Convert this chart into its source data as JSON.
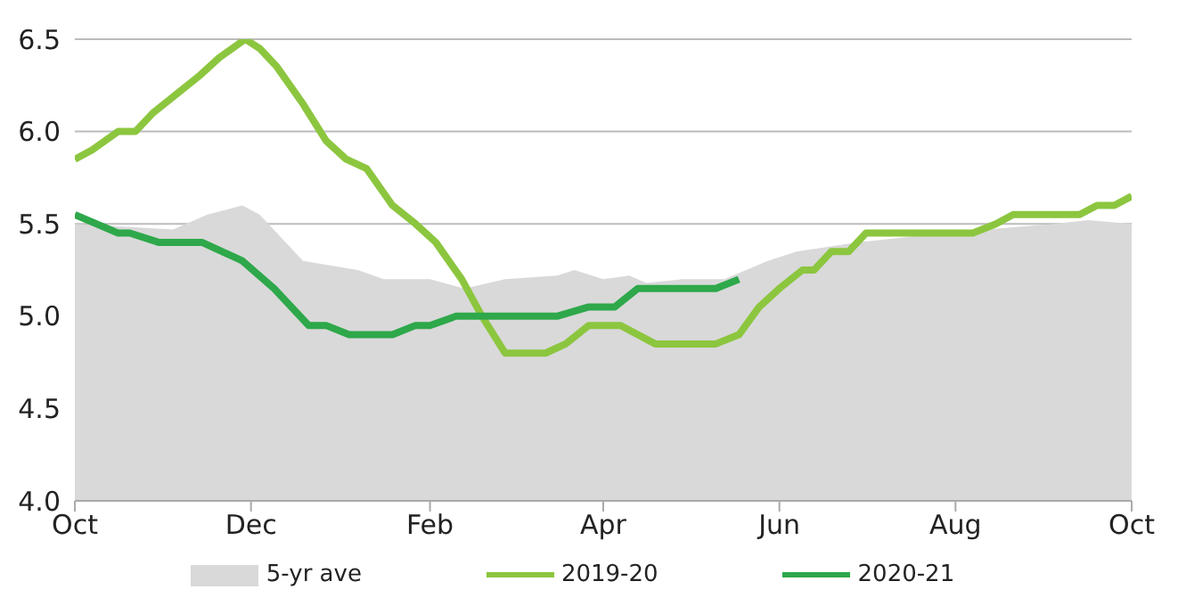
{
  "chart_data": {
    "type": "line",
    "xlim": [
      "2019-10-01",
      "2020-10-01"
    ],
    "xticks": [
      {
        "value": "2019-10-01",
        "label": "Oct"
      },
      {
        "value": "2019-12-01",
        "label": "Dec"
      },
      {
        "value": "2020-02-01",
        "label": "Feb"
      },
      {
        "value": "2020-04-01",
        "label": "Apr"
      },
      {
        "value": "2020-06-01",
        "label": "Jun"
      },
      {
        "value": "2020-08-01",
        "label": "Aug"
      },
      {
        "value": "2020-10-01",
        "label": "Oct"
      }
    ],
    "ylim": [
      4.0,
      6.5
    ],
    "yticks": [
      {
        "value": 4.0,
        "label": "4.0"
      },
      {
        "value": 4.5,
        "label": "4.5"
      },
      {
        "value": 5.0,
        "label": "5.0"
      },
      {
        "value": 5.5,
        "label": "5.5"
      },
      {
        "value": 6.0,
        "label": "6.0"
      },
      {
        "value": 6.5,
        "label": "6.5"
      }
    ],
    "grid": "y",
    "legend": "bottom",
    "series": [
      {
        "name": "5-yr ave",
        "type": "area",
        "color": "#d9d9d9",
        "x": [
          "2019-10-01",
          "2019-11-04",
          "2019-11-16",
          "2019-11-28",
          "2019-12-04",
          "2019-12-19",
          "2020-01-07",
          "2020-01-16",
          "2020-02-01",
          "2020-02-13",
          "2020-02-27",
          "2020-03-16",
          "2020-03-22",
          "2020-04-01",
          "2020-04-10",
          "2020-04-16",
          "2020-04-28",
          "2020-05-13",
          "2020-05-28",
          "2020-06-07",
          "2020-06-28",
          "2020-07-28",
          "2020-09-04",
          "2020-09-16",
          "2020-10-01"
        ],
        "values": [
          5.5,
          5.47,
          5.55,
          5.6,
          5.55,
          5.3,
          5.25,
          5.2,
          5.2,
          5.15,
          5.2,
          5.22,
          5.25,
          5.2,
          5.22,
          5.18,
          5.2,
          5.2,
          5.3,
          5.35,
          5.4,
          5.45,
          5.5,
          5.52,
          5.5
        ]
      },
      {
        "name": "2019-20",
        "color": "#8cc63f",
        "x": [
          "2019-10-01",
          "2019-10-07",
          "2019-10-16",
          "2019-10-22",
          "2019-10-28",
          "2019-11-05",
          "2019-11-13",
          "2019-11-20",
          "2019-11-29",
          "2019-12-04",
          "2019-12-10",
          "2019-12-19",
          "2019-12-27",
          "2020-01-03",
          "2020-01-10",
          "2020-01-19",
          "2020-01-27",
          "2020-02-03",
          "2020-02-12",
          "2020-02-19",
          "2020-02-27",
          "2020-03-12",
          "2020-03-19",
          "2020-03-27",
          "2020-04-07",
          "2020-04-19",
          "2020-05-10",
          "2020-05-18",
          "2020-05-25",
          "2020-06-01",
          "2020-06-09",
          "2020-06-13",
          "2020-06-19",
          "2020-06-25",
          "2020-07-01",
          "2020-08-07",
          "2020-08-15",
          "2020-08-21",
          "2020-09-13",
          "2020-09-19",
          "2020-09-25",
          "2020-10-01"
        ],
        "values": [
          5.85,
          5.9,
          6.0,
          6.0,
          6.1,
          6.2,
          6.3,
          6.4,
          6.5,
          6.45,
          6.35,
          6.15,
          5.95,
          5.85,
          5.8,
          5.6,
          5.5,
          5.4,
          5.2,
          5.0,
          4.8,
          4.8,
          4.85,
          4.95,
          4.95,
          4.85,
          4.85,
          4.9,
          5.05,
          5.15,
          5.25,
          5.25,
          5.35,
          5.35,
          5.45,
          5.45,
          5.5,
          5.55,
          5.55,
          5.6,
          5.6,
          5.65
        ]
      },
      {
        "name": "2020-21",
        "color": "#2ea84a",
        "x": [
          "2019-10-01",
          "2019-10-16",
          "2019-10-20",
          "2019-10-30",
          "2019-11-14",
          "2019-11-28",
          "2019-12-09",
          "2019-12-21",
          "2019-12-27",
          "2020-01-04",
          "2020-01-19",
          "2020-01-27",
          "2020-02-01",
          "2020-02-10",
          "2020-03-16",
          "2020-03-27",
          "2020-04-05",
          "2020-04-13",
          "2020-05-10",
          "2020-05-18"
        ],
        "values": [
          5.55,
          5.45,
          5.45,
          5.4,
          5.4,
          5.3,
          5.15,
          4.95,
          4.95,
          4.9,
          4.9,
          4.95,
          4.95,
          5.0,
          5.0,
          5.05,
          5.05,
          5.15,
          5.15,
          5.2
        ]
      }
    ]
  }
}
